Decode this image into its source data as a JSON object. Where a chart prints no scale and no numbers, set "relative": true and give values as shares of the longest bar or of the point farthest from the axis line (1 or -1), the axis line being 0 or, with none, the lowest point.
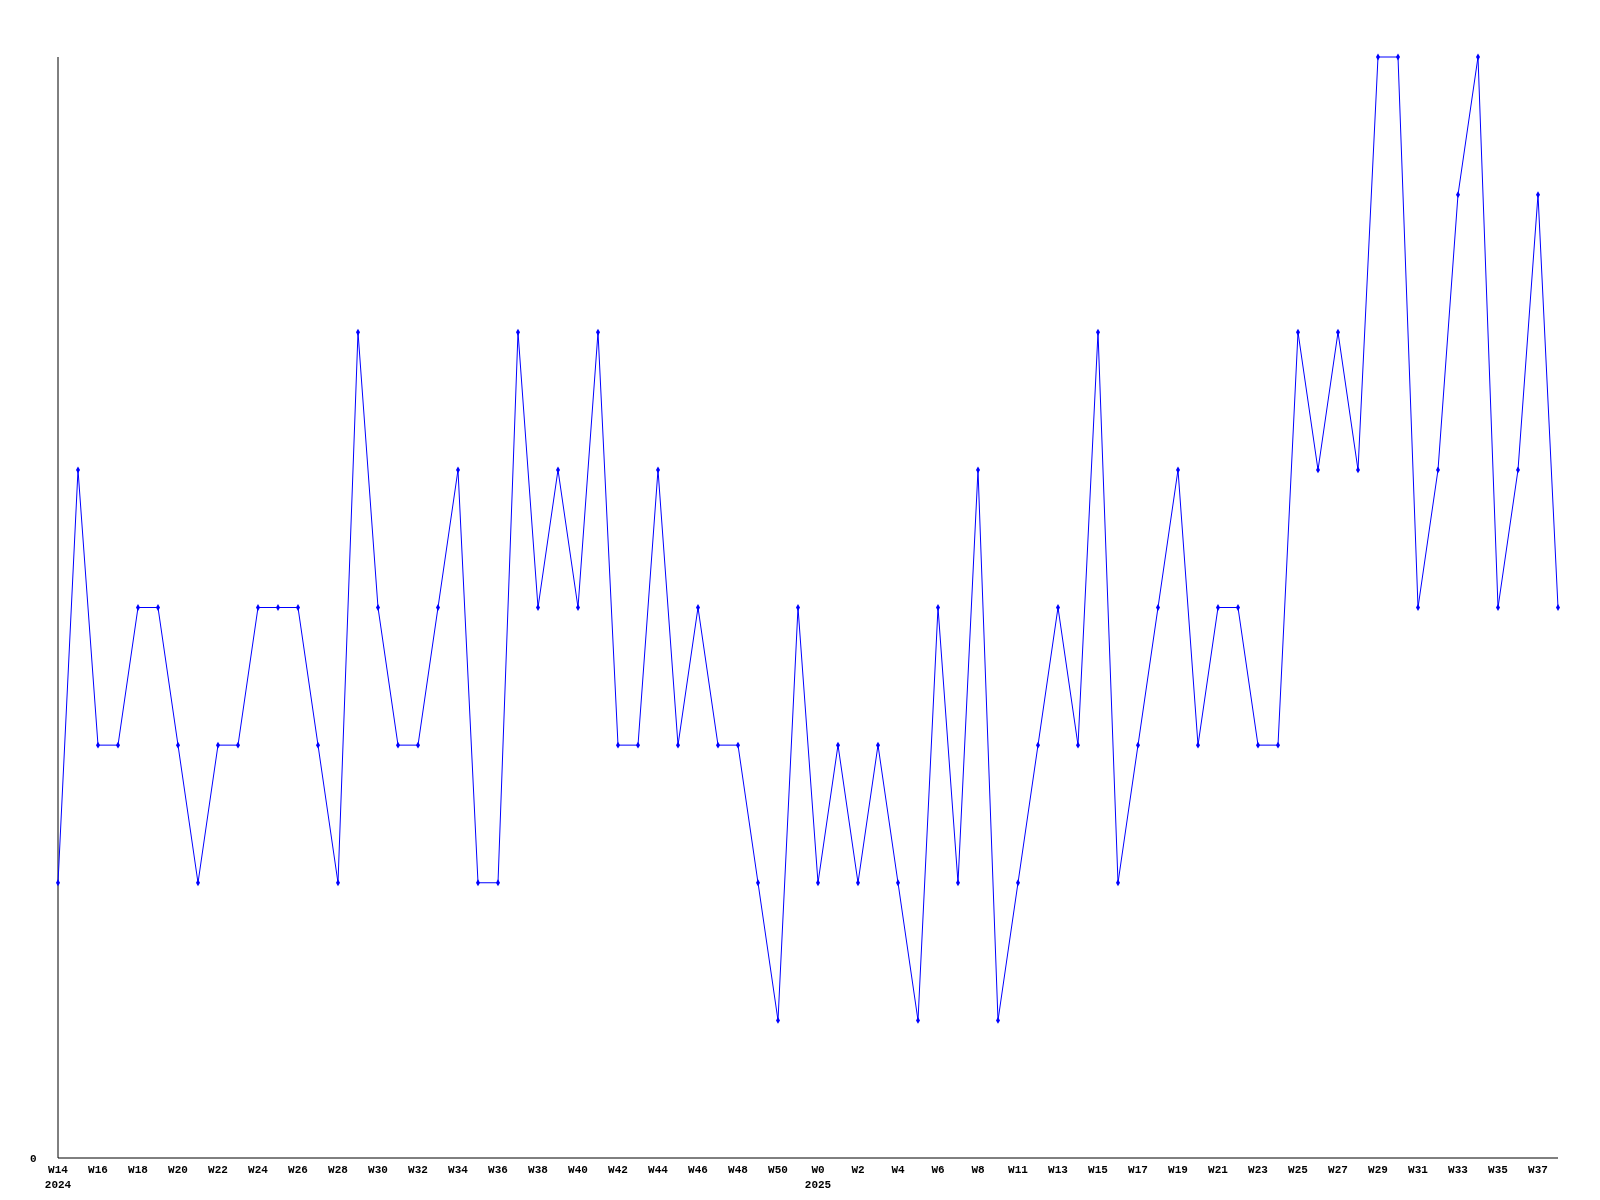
{
  "chart_data": {
    "type": "line",
    "relative": true,
    "color": "#0000ff",
    "marker": "diamond",
    "grid": false,
    "legend": false,
    "categories": [
      "W14\n2024",
      null,
      "W16",
      null,
      "W18",
      null,
      "W20",
      null,
      "W22",
      null,
      "W24",
      null,
      "W26",
      null,
      "W28",
      null,
      "W30",
      null,
      "W32",
      null,
      "W34",
      null,
      "W36",
      null,
      "W38",
      null,
      "W40",
      null,
      "W42",
      null,
      "W44",
      null,
      "W46",
      null,
      "W48",
      null,
      "W50",
      null,
      "W0\n2025",
      null,
      "W2",
      null,
      "W4",
      null,
      "W6",
      null,
      "W8",
      null,
      "W11",
      null,
      "W13",
      null,
      "W15",
      null,
      "W17",
      null,
      "W19",
      null,
      "W21",
      null,
      "W23",
      null,
      "W25",
      null,
      "W27",
      null,
      "W29",
      null,
      "W31",
      null,
      "W33",
      null,
      "W35",
      null,
      "W37",
      null
    ],
    "values": [
      0.25,
      0.625,
      0.375,
      0.375,
      0.5,
      0.5,
      0.375,
      0.25,
      0.375,
      0.375,
      0.5,
      0.5,
      0.5,
      0.375,
      0.25,
      0.75,
      0.5,
      0.375,
      0.375,
      0.5,
      0.625,
      0.25,
      0.25,
      0.75,
      0.5,
      0.625,
      0.5,
      0.75,
      0.375,
      0.375,
      0.625,
      0.375,
      0.5,
      0.375,
      0.375,
      0.25,
      0.125,
      0.5,
      0.25,
      0.375,
      0.25,
      0.375,
      0.25,
      0.125,
      0.5,
      0.25,
      0.625,
      0.125,
      0.25,
      0.375,
      0.5,
      0.375,
      0.75,
      0.25,
      0.375,
      0.5,
      0.625,
      0.375,
      0.5,
      0.5,
      0.375,
      0.375,
      0.75,
      0.625,
      0.75,
      0.625,
      1,
      1,
      0.5,
      0.625,
      0.875,
      1,
      0.5,
      0.625,
      0.875,
      0.5
    ],
    "annotations": [
      "0"
    ]
  }
}
